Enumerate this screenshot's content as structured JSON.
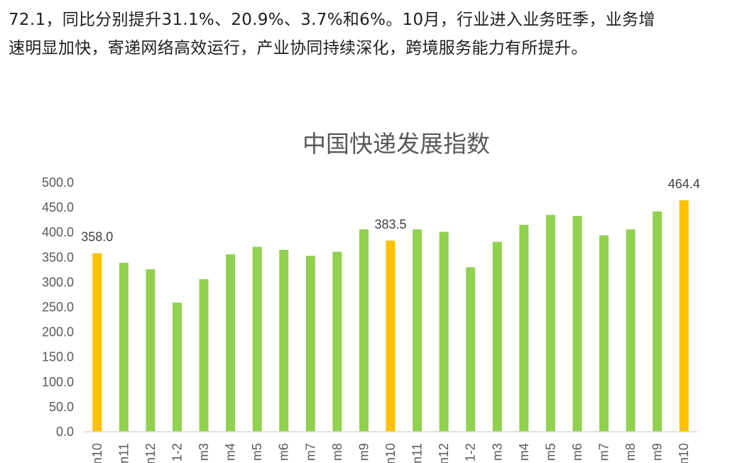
{
  "article": {
    "line1": "72.1，同比分别提升31.1%、20.9%、3.7%和6%。10月，行业进入业务旺季，业务增",
    "line2": "速明显加快，寄递网络高效运行，产业协同持续深化，跨境服务能力有所提升。"
  },
  "colors": {
    "normal_bar": "#92D050",
    "highlight_bar": "#FFC000",
    "axis_line": "#D9D9D9"
  },
  "chart_data": {
    "type": "bar",
    "title": "中国快递发展指数",
    "xlabel": "",
    "ylabel": "",
    "ylim": [
      0,
      500
    ],
    "y_ticks": [
      "0.0",
      "50.0",
      "100.0",
      "150.0",
      "200.0",
      "250.0",
      "300.0",
      "350.0",
      "400.0",
      "450.0",
      "500.0"
    ],
    "grid": false,
    "legend": "none",
    "categories": [
      "n10",
      "n11",
      "n12",
      "1-2",
      "m3",
      "m4",
      "m5",
      "m6",
      "m7",
      "m8",
      "m9",
      "n10",
      "n11",
      "n12",
      "1-2",
      "m3",
      "m4",
      "m5",
      "m6",
      "m7",
      "m8",
      "m9",
      "n10"
    ],
    "values": [
      358.0,
      339,
      326,
      259,
      306,
      356,
      371,
      365,
      353,
      361,
      406,
      383.5,
      406,
      401,
      330,
      381,
      415,
      435,
      433,
      394,
      406,
      442,
      464.4
    ],
    "highlighted": [
      true,
      false,
      false,
      false,
      false,
      false,
      false,
      false,
      false,
      false,
      false,
      true,
      false,
      false,
      false,
      false,
      false,
      false,
      false,
      false,
      false,
      false,
      true
    ],
    "data_labels": [
      "358.0",
      "",
      "",
      "",
      "",
      "",
      "",
      "",
      "",
      "",
      "",
      "383.5",
      "",
      "",
      "",
      "",
      "",
      "",
      "",
      "",
      "",
      "",
      "464.4"
    ]
  }
}
